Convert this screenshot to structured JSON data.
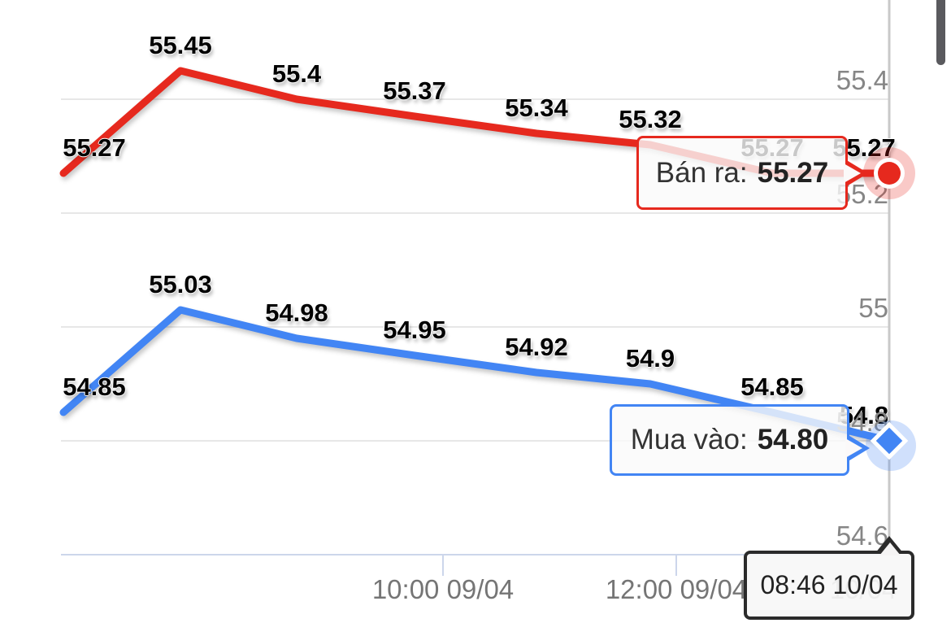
{
  "chart_data": {
    "type": "line",
    "title": "",
    "x_axis": {
      "tick_labels": [
        "10:00 09/04",
        "12:00 09/04"
      ],
      "partial_last_tick_label": "10/04"
    },
    "y_axis": {
      "tick_labels": [
        "55.4",
        "55.2",
        "55",
        "54.8",
        "54.6"
      ],
      "tick_values": [
        55.4,
        55.2,
        55,
        54.8,
        54.6
      ],
      "range": [
        54.5,
        55.55
      ],
      "grid": true,
      "labels_position": "right"
    },
    "series": [
      {
        "name": "Bán ra",
        "color": "#e6291e",
        "marker": "circle",
        "values": [
          55.27,
          55.45,
          55.4,
          55.37,
          55.34,
          55.32,
          55.27,
          55.27
        ],
        "point_labels": [
          "55.27",
          "55.45",
          "55.4",
          "55.37",
          "55.34",
          "55.32",
          "55.27",
          "55.27"
        ]
      },
      {
        "name": "Mua vào",
        "color": "#4285f4",
        "marker": "diamond",
        "values": [
          54.85,
          55.03,
          54.98,
          54.95,
          54.92,
          54.9,
          54.85,
          54.8
        ],
        "point_labels": [
          "54.85",
          "55.03",
          "54.98",
          "54.95",
          "54.92",
          "54.9",
          "54.85",
          "54.8"
        ]
      }
    ]
  },
  "tooltips": {
    "sell": {
      "label": "Bán ra:",
      "value": "55.27"
    },
    "buy": {
      "label": "Mua vào:",
      "value": "54.80"
    },
    "time": {
      "text": "08:46 10/04"
    }
  },
  "colors": {
    "sell_series": "#e6291e",
    "buy_series": "#4285f4",
    "grid": "#e7e7e7",
    "axis_line": "#ccd6eb",
    "crosshair": "#c9c9c9",
    "time_tooltip_border": "#2b2b2b",
    "axis_label_text": "#757575",
    "scrollbar": "#5a5a5e"
  }
}
